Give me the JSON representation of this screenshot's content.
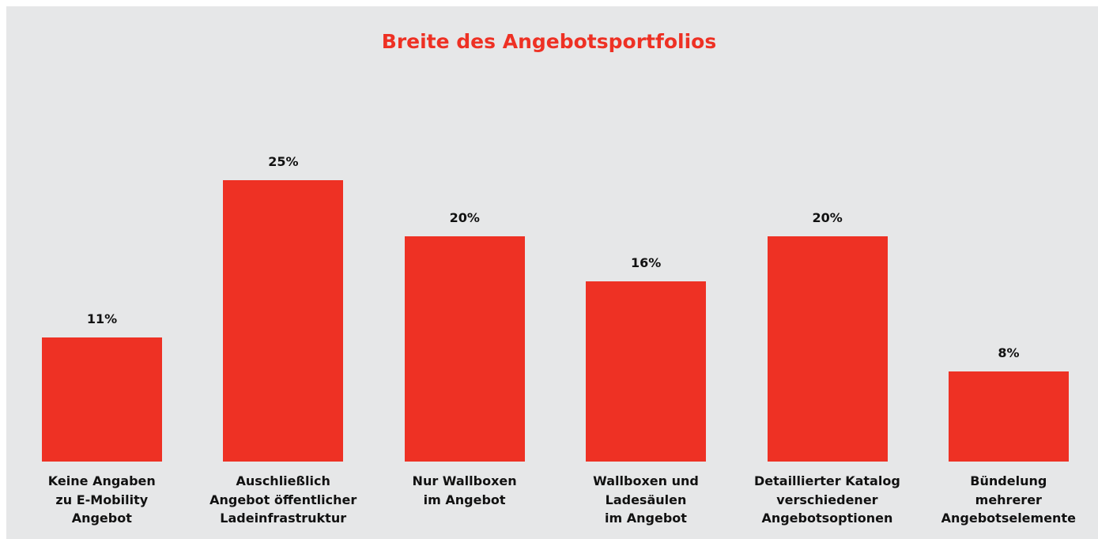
{
  "chart_data": {
    "type": "bar",
    "title": "Breite des Angebotsportfolios",
    "categories": [
      "Keine Angaben\nzu E-Mobility\nAngebot",
      "Auschließlich\nAngebot öffentlicher\nLadeinfrastruktur",
      "Nur Wallboxen\nim Angebot",
      "Wallboxen und\nLadesäulen\nim Angebot",
      "Detaillierter Katalog\nverschiedener\nAngebotsoptionen",
      "Bündelung\nmehrerer\nAngebotselemente"
    ],
    "values": [
      11,
      25,
      20,
      16,
      20,
      8
    ],
    "value_labels": [
      "11%",
      "25%",
      "20%",
      "16%",
      "20%",
      "8%"
    ],
    "color": "#ee3124",
    "ylim": [
      0,
      25
    ]
  }
}
